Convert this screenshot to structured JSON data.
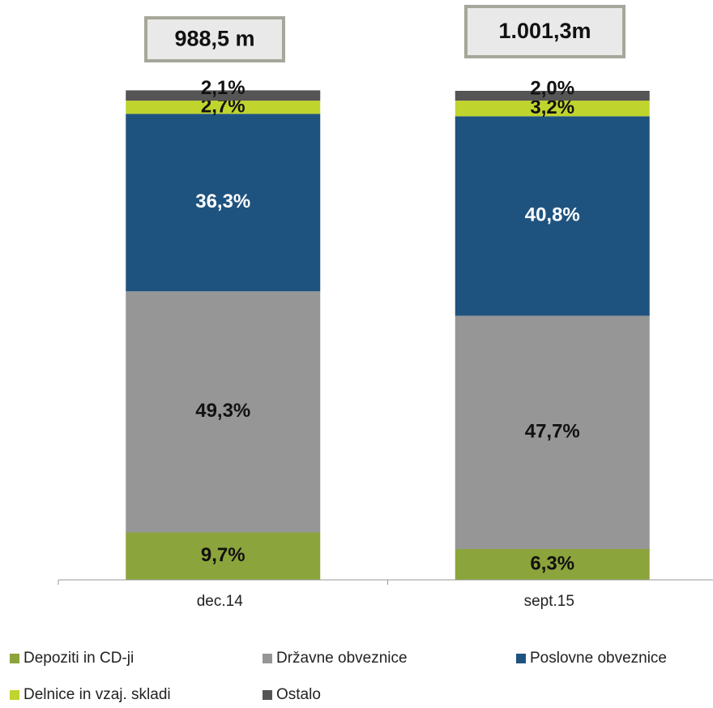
{
  "chart_data": {
    "type": "stacked_bar",
    "categories": [
      "dec.14",
      "sept.15"
    ],
    "annotations": [
      "988,5 m",
      "1.001,3m"
    ],
    "ylim": [
      0,
      100
    ],
    "series": [
      {
        "name": "Depoziti in CD-ji",
        "color": "#8ca43c",
        "values": [
          9.7,
          6.3
        ],
        "value_labels": [
          "9,7%",
          "6,3%"
        ]
      },
      {
        "name": "Državne obveznice",
        "color": "#969696",
        "values": [
          49.3,
          47.7
        ],
        "value_labels": [
          "49,3%",
          "47,7%"
        ]
      },
      {
        "name": "Poslovne obveznice",
        "color": "#1f537f",
        "values": [
          36.3,
          40.8
        ],
        "value_labels": [
          "36,3%",
          "40,8%"
        ]
      },
      {
        "name": "Delnice in vzaj. skladi",
        "color": "#c0d42e",
        "values": [
          2.7,
          3.2
        ],
        "value_labels": [
          "2,7%",
          "3,2%"
        ]
      },
      {
        "name": "Ostalo",
        "color": "#555555",
        "values": [
          2.1,
          2.0
        ],
        "value_labels": [
          "2,1%",
          "2,0%"
        ]
      }
    ]
  }
}
